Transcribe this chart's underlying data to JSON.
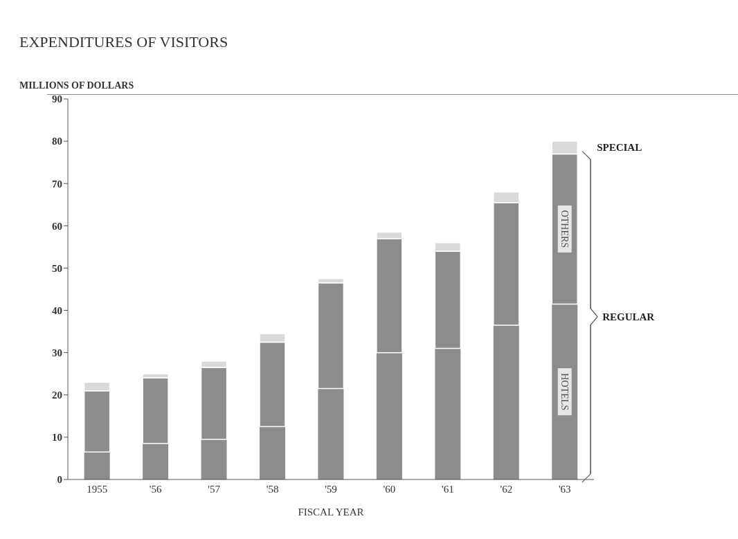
{
  "chart_data": {
    "type": "bar",
    "title": "EXPENDITURES OF VISITORS",
    "ylabel": "MILLIONS OF DOLLARS",
    "xlabel": "FISCAL YEAR",
    "categories": [
      "1955",
      "'56",
      "'57",
      "'58",
      "'59",
      "'60",
      "'61",
      "'62",
      "'63"
    ],
    "stacked": true,
    "series": [
      {
        "name": "HOTELS",
        "color": "#8c8c8c",
        "values": [
          6.5,
          8.5,
          9.5,
          12.5,
          21.5,
          30,
          31,
          36.5,
          41.5
        ]
      },
      {
        "name": "OTHERS",
        "color": "#8c8c8c",
        "values": [
          14.5,
          15.5,
          17,
          20,
          25,
          27,
          23,
          29,
          35.5
        ]
      },
      {
        "name": "SPECIAL",
        "color": "#d9d9d9",
        "values": [
          2,
          1,
          1.5,
          2,
          1,
          1.5,
          2,
          2.5,
          3
        ]
      }
    ],
    "ylim": [
      0,
      90
    ],
    "yticks": [
      0,
      10,
      20,
      30,
      40,
      50,
      60,
      70,
      80,
      90
    ],
    "annotations": [
      "REGULAR"
    ]
  }
}
